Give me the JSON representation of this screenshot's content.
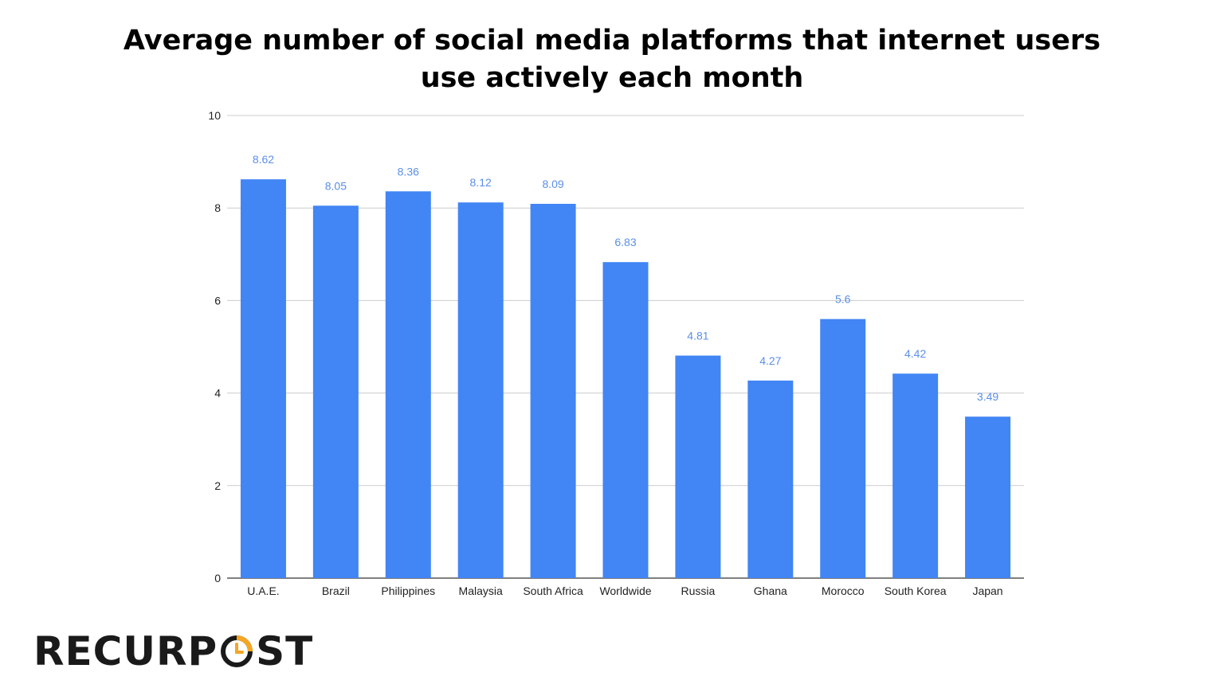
{
  "chart_data": {
    "type": "bar",
    "title_line1": "Average number of social media platforms that internet users",
    "title_line2": "use actively each month",
    "categories": [
      "U.A.E.",
      "Brazil",
      "Philippines",
      "Malaysia",
      "South Africa",
      "Worldwide",
      "Russia",
      "Ghana",
      "Morocco",
      "South Korea",
      "Japan"
    ],
    "values": [
      8.62,
      8.05,
      8.36,
      8.12,
      8.09,
      6.83,
      4.81,
      4.27,
      5.6,
      4.42,
      3.49
    ],
    "value_labels": [
      "8.62",
      "8.05",
      "8.36",
      "8.12",
      "8.09",
      "6.83",
      "4.81",
      "4.27",
      "5.6",
      "4.42",
      "3.49"
    ],
    "ylim": [
      0,
      10
    ],
    "yticks": [
      0,
      2,
      4,
      6,
      8,
      10
    ],
    "grid": true,
    "bar_color": "#4285f4",
    "label_color": "#5b8fe8"
  },
  "brand": {
    "logo_text_a": "RECURP",
    "logo_text_b": "ST",
    "accent_color": "#f5a623",
    "icon": "clock-icon"
  }
}
